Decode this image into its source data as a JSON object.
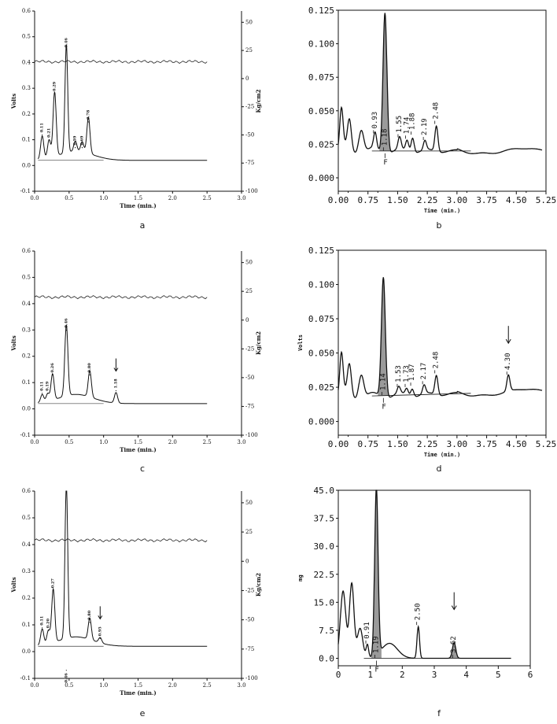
{
  "chart_data": [
    {
      "panel": "a",
      "type": "line",
      "xlabel": "Time (min.)",
      "ylabel": "Volts",
      "ylabel_right": "Kg/cm2",
      "xlim": [
        0,
        3.0
      ],
      "ylim": [
        -0.1,
        0.6
      ],
      "ylim_right": [
        -100,
        60
      ],
      "x_ticks": [
        "0.0",
        "0.5",
        "1.0",
        "1.5",
        "2.0",
        "2.5",
        "3.0"
      ],
      "y_ticks": [
        "-0.1",
        "0.0",
        "0.1",
        "0.2",
        "0.3",
        "0.4",
        "0.5",
        "0.6"
      ],
      "y_ticks_right": [
        "-100",
        "-75",
        "-50",
        "-25",
        "0",
        "25",
        "50"
      ],
      "peaks": [
        {
          "label": "0.11",
          "x": 0.11,
          "y": 0.11
        },
        {
          "label": "0.21",
          "x": 0.21,
          "y": 0.09
        },
        {
          "label": "0.29",
          "x": 0.29,
          "y": 0.27
        },
        {
          "label": "0.46",
          "x": 0.46,
          "y": 0.44
        },
        {
          "label": "0.59",
          "x": 0.59,
          "y": 0.06
        },
        {
          "label": "0.69",
          "x": 0.69,
          "y": 0.06
        },
        {
          "label": "0.78",
          "x": 0.78,
          "y": 0.16
        }
      ],
      "pressure": {
        "level": 15
      },
      "baseline": {
        "start": 0.02,
        "end": 0.02
      }
    },
    {
      "panel": "b",
      "type": "line",
      "xlabel": "Time (min.)",
      "xlim": [
        0,
        5.25
      ],
      "ylim": [
        -0.01,
        0.125
      ],
      "x_ticks": [
        "0.00",
        "0.75",
        "1.50",
        "2.25",
        "3.00",
        "3.75",
        "4.50",
        "5.25"
      ],
      "x_minor_ticks": [
        "0.25",
        "1.00",
        "1.75",
        "2.50",
        "3.25",
        "4.00",
        "4.75"
      ],
      "y_ticks": [
        "0.000",
        "0.025",
        "0.050",
        "0.075",
        "0.100",
        "0.125"
      ],
      "peaks": [
        {
          "label": "0.93",
          "x": 0.93,
          "y": 0.032
        },
        {
          "label": "1.18",
          "x": 1.18,
          "y": 0.125,
          "shaded": true
        },
        {
          "label": "1.55",
          "x": 1.55,
          "y": 0.029
        },
        {
          "label": "1.74",
          "x": 1.74,
          "y": 0.028
        },
        {
          "label": "1.88",
          "x": 1.88,
          "y": 0.031
        },
        {
          "label": "2.19",
          "x": 2.19,
          "y": 0.027
        },
        {
          "label": "2.48",
          "x": 2.48,
          "y": 0.039
        }
      ],
      "marker_label": "F",
      "baseline": {
        "start": 0.02,
        "end": 0.02
      }
    },
    {
      "panel": "c",
      "type": "line",
      "xlabel": "Time (min.)",
      "ylabel": "Volts",
      "ylabel_right": "Kg/cm2",
      "xlim": [
        0,
        3.0
      ],
      "ylim": [
        -0.1,
        0.6
      ],
      "ylim_right": [
        -100,
        60
      ],
      "x_ticks": [
        "0.0",
        "0.5",
        "1.0",
        "1.5",
        "2.0",
        "2.5",
        "3.0"
      ],
      "y_ticks": [
        "-0.1",
        "0.0",
        "0.1",
        "0.2",
        "0.3",
        "0.4",
        "0.5",
        "0.6"
      ],
      "y_ticks_right": [
        "-100",
        "-75",
        "-50",
        "-25",
        "0",
        "25",
        "50"
      ],
      "peaks": [
        {
          "label": "0.11",
          "x": 0.11,
          "y": 0.05
        },
        {
          "label": "0.19",
          "x": 0.19,
          "y": 0.05
        },
        {
          "label": "0.26",
          "x": 0.26,
          "y": 0.12
        },
        {
          "label": "0.46",
          "x": 0.46,
          "y": 0.29
        },
        {
          "label": "0.80",
          "x": 0.8,
          "y": 0.12
        },
        {
          "label": "1.18",
          "x": 1.18,
          "y": 0.06,
          "arrow": true
        }
      ],
      "pressure": {
        "level": 20
      },
      "baseline": {
        "start": 0.02,
        "end": 0.02
      }
    },
    {
      "panel": "d",
      "type": "line",
      "xlabel": "Time (min.)",
      "ylabel": "Volts",
      "xlim": [
        0,
        5.25
      ],
      "ylim": [
        -0.01,
        0.125
      ],
      "x_ticks": [
        "0.00",
        "0.75",
        "1.50",
        "2.25",
        "3.00",
        "3.75",
        "4.50",
        "5.25"
      ],
      "x_minor_ticks": [
        "0.25",
        "1.00",
        "1.75",
        "2.50",
        "3.25",
        "4.00",
        "4.75"
      ],
      "y_ticks": [
        "0.000",
        "0.025",
        "0.050",
        "0.075",
        "0.100",
        "0.125"
      ],
      "peaks": [
        {
          "label": "1.14",
          "x": 1.14,
          "y": 0.107,
          "shaded": true
        },
        {
          "label": "1.53",
          "x": 1.53,
          "y": 0.024
        },
        {
          "label": "1.73",
          "x": 1.73,
          "y": 0.024
        },
        {
          "label": "1.87",
          "x": 1.87,
          "y": 0.025
        },
        {
          "label": "2.17",
          "x": 2.17,
          "y": 0.026
        },
        {
          "label": "2.48",
          "x": 2.48,
          "y": 0.034
        },
        {
          "label": "4.30",
          "x": 4.3,
          "y": 0.033,
          "arrow": true
        }
      ],
      "marker_label": "F",
      "baseline": {
        "start": 0.018,
        "end": 0.022
      }
    },
    {
      "panel": "e",
      "type": "line",
      "xlabel": "Time (min.)",
      "ylabel": "Volts",
      "ylabel_right": "Kg/cm2",
      "xlim": [
        0,
        3.0
      ],
      "ylim": [
        -0.1,
        0.6
      ],
      "ylim_right": [
        -100,
        60
      ],
      "x_ticks": [
        "0.0",
        "0.5",
        "1.0",
        "1.5",
        "2.0",
        "2.5",
        "3.0"
      ],
      "y_ticks": [
        "-0.1",
        "0.0",
        "0.1",
        "0.2",
        "0.3",
        "0.4",
        "0.5",
        "0.6"
      ],
      "y_ticks_right": [
        "-100",
        "-75",
        "-50",
        "-25",
        "0",
        "25",
        "50"
      ],
      "peaks": [
        {
          "label": "0.11",
          "x": 0.11,
          "y": 0.08
        },
        {
          "label": "0.20",
          "x": 0.2,
          "y": 0.07
        },
        {
          "label": "0.27",
          "x": 0.27,
          "y": 0.22
        },
        {
          "label": "0.46",
          "x": 0.46,
          "y": 0.6,
          "label_below": true
        },
        {
          "label": "0.80",
          "x": 0.8,
          "y": 0.1
        },
        {
          "label": "0.95",
          "x": 0.95,
          "y": 0.04,
          "arrow": true
        }
      ],
      "pressure": {
        "level": 18
      },
      "baseline": {
        "start": 0.02,
        "end": 0.02
      }
    },
    {
      "panel": "f",
      "type": "line",
      "ylabel": "mg",
      "xlim": [
        0,
        6
      ],
      "ylim": [
        -2,
        45
      ],
      "x_ticks": [
        "0",
        "1",
        "2",
        "3",
        "4",
        "5",
        "6"
      ],
      "y_ticks": [
        "0.0",
        "7.5",
        "15.0",
        "22.5",
        "30.0",
        "37.5",
        "45.0"
      ],
      "peaks": [
        {
          "label": "0.91",
          "x": 0.91,
          "y": 3.5
        },
        {
          "label": "1.19",
          "x": 1.19,
          "y": 45,
          "shaded": true
        },
        {
          "label": "2.50",
          "x": 2.5,
          "y": 8.5
        },
        {
          "label": "3.62",
          "x": 3.62,
          "y": 4.2,
          "arrow": true,
          "shaded": true
        }
      ],
      "marker_label": "F",
      "baseline": {
        "start": 0,
        "end": 0
      }
    }
  ],
  "panel_labels": [
    "a",
    "b",
    "c",
    "d",
    "e",
    "f"
  ]
}
